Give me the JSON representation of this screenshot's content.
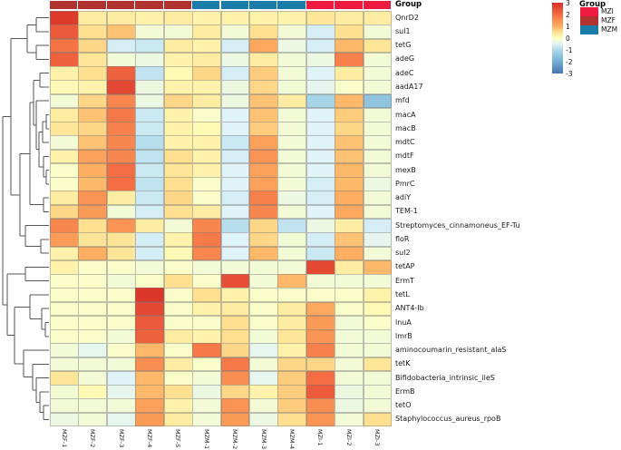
{
  "chart_data": {
    "type": "heatmap",
    "annotation_title": "Group",
    "columns": [
      "MZF-1",
      "MZF-2",
      "MZF-3",
      "MZF-4",
      "MZF-5",
      "MZM-1",
      "MZM-2",
      "MZM-3",
      "MZM-4",
      "MZI-1",
      "MZI-2",
      "MZI-3"
    ],
    "column_groups": [
      "MZF",
      "MZF",
      "MZF",
      "MZF",
      "MZF",
      "MZM",
      "MZM",
      "MZM",
      "MZM",
      "MZI",
      "MZI",
      "MZI"
    ],
    "rows": [
      "QnrD2",
      "sul1",
      "tetG",
      "adeG",
      "adeC",
      "aadA17",
      "mfd",
      "macA",
      "macB",
      "mdtC",
      "mdtF",
      "mexB",
      "PmrC",
      "adiY",
      "TEM-1",
      "Streptomyces_cinnamoneus_EF-Tu",
      "floR",
      "sul2",
      "tetAP",
      "ErmT",
      "tetL",
      "ANT4-Ib",
      "lnuA",
      "lmrB",
      "aminocoumarin_resistant_alaS",
      "tetK",
      "Bifidobacteria_intrinsic_ileS",
      "ErmB",
      "tetO",
      "Staphylococcus_aureus_rpoB"
    ],
    "values": [
      [
        2.8,
        0.3,
        0.3,
        0.2,
        0.3,
        0.2,
        0.2,
        0.2,
        0.2,
        0.4,
        0.3,
        0.3
      ],
      [
        2.3,
        0.5,
        0.8,
        -0.2,
        -0.2,
        0.3,
        -0.2,
        0.5,
        -0.2,
        -0.6,
        0.5,
        -0.2
      ],
      [
        1.9,
        0.6,
        -0.6,
        -0.7,
        0.3,
        0.2,
        -0.6,
        1.1,
        -0.3,
        -0.6,
        0.9,
        0.4
      ],
      [
        2.2,
        0.4,
        -0.2,
        -0.3,
        0.2,
        0.3,
        -0.3,
        0.3,
        -0.2,
        -0.3,
        1.7,
        -0.2
      ],
      [
        0.2,
        0.5,
        2.2,
        -0.8,
        0.1,
        0.6,
        -0.6,
        0.7,
        -0.2,
        -0.5,
        0.3,
        -0.2
      ],
      [
        0.1,
        0.2,
        2.6,
        -0.3,
        0.2,
        0.2,
        -0.3,
        0.6,
        -0.2,
        -0.4,
        -0.1,
        -0.2
      ],
      [
        -0.2,
        0.6,
        1.6,
        -0.3,
        0.6,
        0.3,
        -0.3,
        0.8,
        0.3,
        -1.1,
        0.9,
        -1.5
      ],
      [
        0.3,
        0.8,
        1.8,
        -0.7,
        0.2,
        -0.1,
        -0.5,
        0.8,
        -0.2,
        -0.5,
        0.7,
        -0.2
      ],
      [
        0.4,
        0.6,
        1.7,
        -0.7,
        0.2,
        0.1,
        -0.5,
        0.7,
        -0.2,
        -0.5,
        0.6,
        -0.2
      ],
      [
        -0.2,
        0.8,
        1.6,
        -0.9,
        0.2,
        0.2,
        -0.7,
        1.2,
        -0.2,
        -0.5,
        0.8,
        -0.2
      ],
      [
        0.2,
        1.2,
        1.6,
        -0.8,
        0.5,
        0.2,
        -0.6,
        1.4,
        -0.2,
        -0.5,
        0.8,
        -0.2
      ],
      [
        -0.1,
        1.0,
        2.0,
        -0.7,
        0.4,
        0.2,
        -0.5,
        1.2,
        -0.2,
        -0.5,
        0.9,
        -0.2
      ],
      [
        -0.1,
        0.9,
        2.0,
        -0.8,
        0.5,
        -0.1,
        -0.5,
        1.2,
        -0.2,
        -0.6,
        0.9,
        -0.3
      ],
      [
        0.3,
        1.4,
        0.3,
        -0.7,
        0.6,
        -0.1,
        -0.6,
        1.7,
        -0.3,
        -0.6,
        1.0,
        -0.2
      ],
      [
        0.6,
        1.3,
        -0.2,
        -0.6,
        0.5,
        0.3,
        -0.5,
        1.6,
        -0.2,
        -0.5,
        1.1,
        -0.2
      ],
      [
        1.6,
        0.5,
        1.4,
        0.3,
        -0.2,
        1.6,
        -0.9,
        0.6,
        -0.8,
        -0.3,
        0.3,
        -0.6
      ],
      [
        1.3,
        0.4,
        0.4,
        -0.6,
        0.2,
        1.8,
        -0.5,
        0.6,
        -0.2,
        -0.6,
        0.8,
        -0.4
      ],
      [
        0.2,
        1.0,
        0.4,
        -0.6,
        0.1,
        1.6,
        -0.5,
        0.9,
        -0.2,
        -0.7,
        1.0,
        -0.2
      ],
      [
        0.2,
        -0.1,
        -0.1,
        -0.2,
        -0.1,
        -0.2,
        -0.2,
        -0.2,
        -0.2,
        2.6,
        0.3,
        0.9
      ],
      [
        -0.1,
        -0.1,
        -0.2,
        -0.1,
        0.5,
        -0.1,
        2.5,
        -0.2,
        0.9,
        -0.2,
        -0.2,
        -0.2
      ],
      [
        -0.1,
        -0.1,
        -0.1,
        2.9,
        -0.1,
        0.5,
        0.2,
        -0.1,
        -0.1,
        -0.1,
        -0.1,
        0.2
      ],
      [
        -0.1,
        -0.1,
        -0.1,
        2.6,
        -0.1,
        0.2,
        0.3,
        -0.1,
        0.3,
        1.1,
        -0.1,
        0.1
      ],
      [
        -0.1,
        -0.1,
        -0.1,
        2.3,
        -0.1,
        -0.1,
        0.5,
        -0.1,
        0.3,
        1.3,
        -0.2,
        -0.1
      ],
      [
        -0.1,
        -0.1,
        -0.2,
        2.2,
        0.3,
        0.2,
        0.5,
        -0.2,
        0.4,
        1.4,
        -0.2,
        -0.2
      ],
      [
        -0.2,
        -0.4,
        -0.1,
        0.9,
        -0.1,
        1.8,
        0.6,
        -0.4,
        0.2,
        1.7,
        -0.2,
        -0.2
      ],
      [
        -0.2,
        -0.2,
        -0.2,
        1.5,
        0.3,
        -0.1,
        1.8,
        -0.2,
        0.6,
        0.6,
        -0.2,
        0.4
      ],
      [
        0.4,
        -0.2,
        -0.5,
        0.9,
        -0.1,
        -0.2,
        1.5,
        -0.4,
        0.7,
        2.0,
        -0.2,
        -0.2
      ],
      [
        -0.2,
        0.1,
        -0.4,
        0.9,
        0.5,
        -0.3,
        0.6,
        0.2,
        0.7,
        2.3,
        -0.3,
        -0.2
      ],
      [
        -0.2,
        -0.2,
        -0.2,
        1.2,
        0.2,
        -0.2,
        1.4,
        -0.2,
        0.7,
        1.5,
        -0.3,
        -0.2
      ],
      [
        -0.3,
        -0.2,
        -0.4,
        1.3,
        0.3,
        -0.2,
        1.3,
        -0.3,
        0.5,
        1.4,
        -0.2,
        0.5
      ]
    ],
    "value_range": [
      -3,
      3
    ],
    "legend_ticks": [
      "3",
      "2",
      "1",
      "0",
      "-1",
      "-2",
      "-3"
    ],
    "colormap_stops": [
      {
        "v": -3,
        "color": "#4575B4"
      },
      {
        "v": -2,
        "color": "#74ADD1"
      },
      {
        "v": -1,
        "color": "#ABD9E9"
      },
      {
        "v": -0.5,
        "color": "#E0F3F8"
      },
      {
        "v": 0,
        "color": "#FFFFBF"
      },
      {
        "v": 0.5,
        "color": "#FEE090"
      },
      {
        "v": 1,
        "color": "#FDAE61"
      },
      {
        "v": 2,
        "color": "#F46D43"
      },
      {
        "v": 3,
        "color": "#D73027"
      }
    ],
    "group_legend": {
      "title": "Group",
      "items": [
        {
          "label": "MZI",
          "color": "#EE1B41"
        },
        {
          "label": "MZF",
          "color": "#B03330"
        },
        {
          "label": "MZM",
          "color": "#1A7CA8"
        }
      ]
    },
    "row_dendrogram": {
      "x": 3,
      "c": [
        {
          "x": 12,
          "c": [
            {
              "x": 30,
              "c": [
                {
                  "x": 40,
                  "c": [
                    1,
                    2
                  ]
                },
                {
                  "x": 40,
                  "c": [
                    3,
                    4
                  ]
                }
              ]
            },
            {
              "x": 22,
              "c": [
                {
                  "x": 33,
                  "c": [
                    {
                      "x": 37,
                      "c": [
                        {
                          "x": 44,
                          "c": [
                            5,
                            6
                          ]
                        },
                        {
                          "x": 40,
                          "c": [
                            7,
                            {
                              "x": 43,
                              "c": [
                                {
                                  "x": 47,
                                  "c": [
                                    {
                                      "x": 51,
                                      "c": [
                                        8,
                                        9
                                      ]
                                    },
                                    10
                                  ]
                                },
                                {
                                  "x": 48,
                                  "c": [
                                    11,
                                    {
                                      "x": 51,
                                      "c": [
                                        12,
                                        13
                                      ]
                                    }
                                  ]
                                }
                              ]
                            }
                          ]
                        }
                      ]
                    },
                    {
                      "x": 48,
                      "c": [
                        14,
                        15
                      ]
                    }
                  ]
                },
                {
                  "x": 28,
                  "c": [
                    16,
                    {
                      "x": 45,
                      "c": [
                        17,
                        18
                      ]
                    }
                  ]
                }
              ]
            }
          ]
        },
        {
          "x": 8,
          "c": [
            {
              "x": 28,
              "c": [
                19,
                20
              ]
            },
            {
              "x": 16,
              "c": [
                {
                  "x": 33,
                  "c": [
                    21,
                    {
                      "x": 46,
                      "c": [
                        22,
                        {
                          "x": 50,
                          "c": [
                            23,
                            24
                          ]
                        }
                      ]
                    }
                  ]
                },
                {
                  "x": 26,
                  "c": [
                    25,
                    {
                      "x": 36,
                      "c": [
                        26,
                        {
                          "x": 40,
                          "c": [
                            27,
                            {
                              "x": 44,
                              "c": [
                                28,
                                {
                                  "x": 48,
                                  "c": [
                                    29,
                                    30
                                  ]
                                }
                              ]
                            }
                          ]
                        }
                      ]
                    }
                  ]
                }
              ]
            }
          ]
        }
      ]
    }
  }
}
